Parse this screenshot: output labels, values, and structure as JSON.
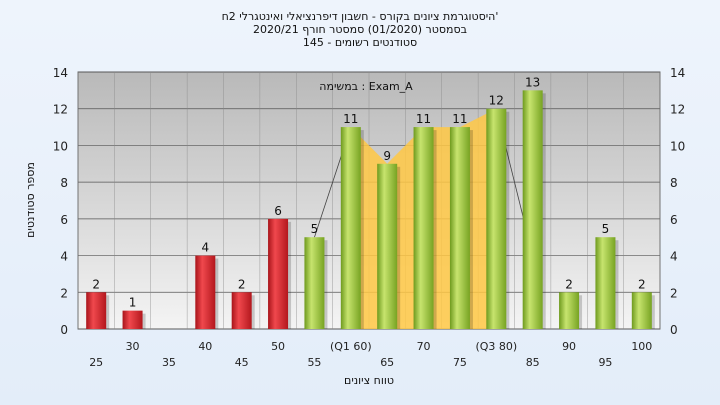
{
  "chart_data": {
    "type": "bar",
    "title": "היסטוגרמת ציונים בקורס - חשבון דיפרנציאלי ואינטגרלי 2ח'",
    "subtitle": "בסמסטר  (01/2020)  סמסטר חורף 2020/21",
    "subtitle2": "סטודנטים רשומים - 145",
    "annotation": "במשימה : Exam_A",
    "xlabel": "טווח ציונים",
    "ylabel": "מספר סטודנטים",
    "ylim": [
      0,
      14
    ],
    "yticks": [
      0,
      2,
      4,
      6,
      8,
      10,
      12,
      14
    ],
    "grid": true,
    "categories": [
      "25",
      "30",
      "35",
      "40",
      "45",
      "50",
      "55",
      "(Q1 60)",
      "65",
      "70",
      "75",
      "(Q3 80)",
      "85",
      "90",
      "95",
      "100"
    ],
    "values": [
      2,
      1,
      0,
      4,
      2,
      6,
      5,
      11,
      9,
      11,
      11,
      12,
      13,
      2,
      5,
      2
    ],
    "bar_colors": [
      "red",
      "red",
      "red",
      "red",
      "red",
      "red",
      "green",
      "green",
      "green",
      "green",
      "green",
      "green",
      "green",
      "green",
      "green",
      "green"
    ],
    "highlight_range": [
      "(Q1 60)",
      "(Q3 80)"
    ],
    "colors": {
      "red": "#d9262c",
      "green": "#8fbf2e",
      "highlight": "#ffc844"
    }
  }
}
